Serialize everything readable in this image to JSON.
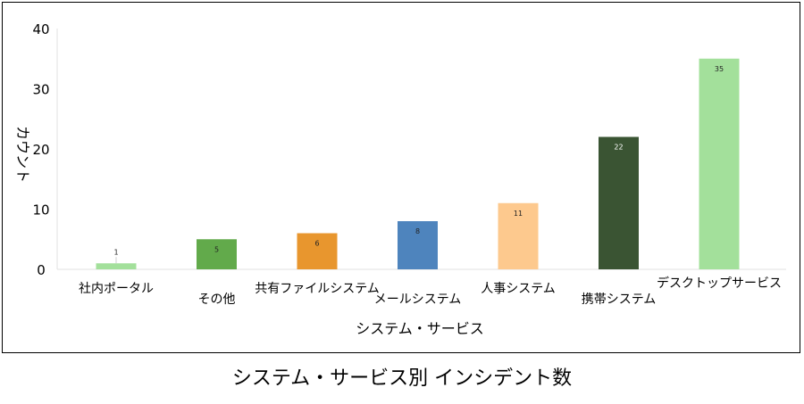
{
  "caption": "システム・サービス別 インシデント数",
  "chart_data": {
    "type": "bar",
    "title": "システム・サービス別 インシデント数",
    "xlabel": "システム・サービス",
    "ylabel": "カウント",
    "ylim": [
      0,
      40
    ],
    "yticks": [
      0,
      10,
      20,
      30,
      40
    ],
    "grid": false,
    "categories": [
      "社内ポータル",
      "その他",
      "共有ファイルシステム",
      "メールシステム",
      "人事システム",
      "携帯システム",
      "デスクトップサービス"
    ],
    "values": [
      1,
      5,
      6,
      8,
      11,
      22,
      35
    ],
    "colors": [
      "#a3e09b",
      "#62aa4b",
      "#e8962e",
      "#4e84bd",
      "#fdc98e",
      "#3a5433",
      "#a3e09b"
    ]
  }
}
